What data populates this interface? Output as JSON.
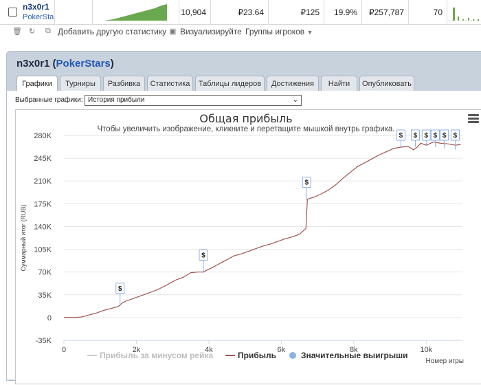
{
  "top_row": {
    "player_name": "n3x0r1",
    "player_site": "PokerStars",
    "hands": "10,904",
    "avg_buyin": "₽23.64",
    "max_buyin": "₽125",
    "roi": "19.9%",
    "profit": "₽257,787",
    "percentile": "70"
  },
  "toolbar": {
    "add_stats_label": "Добавить другую статистику",
    "visualize_label": "Визуализируйте",
    "groups_label": "Группы игроков"
  },
  "panel": {
    "player": "n3x0r1",
    "site": "PokerStars",
    "tabs": [
      "Графики",
      "Турниры",
      "Разбивка",
      "Статистика",
      "Таблицы лидеров",
      "Достижения",
      "Найти",
      "Опубликовать"
    ],
    "active_tab": 0,
    "chart_select_label": "Выбранные графики:",
    "chart_select_value": "История прибыли"
  },
  "chart_data": {
    "type": "line",
    "title": "Общая прибыль",
    "subtitle": "Чтобы увеличить изображение, кликните и перетащите мышкой внутрь графика.",
    "xlabel": "Номер игры",
    "ylabel": "Суммарный итог (RUB)",
    "xlim": [
      0,
      11000
    ],
    "ylim": [
      -35000,
      280000
    ],
    "x_ticks": [
      0,
      2000,
      4000,
      6000,
      8000,
      10000
    ],
    "x_tick_labels": [
      "0",
      "2k",
      "4k",
      "6k",
      "8k",
      "10k"
    ],
    "y_ticks": [
      -35000,
      0,
      35000,
      70000,
      105000,
      140000,
      175000,
      210000,
      245000,
      280000
    ],
    "y_tick_labels": [
      "-35K",
      "0",
      "35K",
      "70K",
      "105K",
      "140K",
      "175K",
      "210K",
      "245K",
      "280K"
    ],
    "legend": [
      "Прибыль за минусом рейка",
      "Прибыль",
      "Значительные выигрыши"
    ],
    "series": [
      {
        "name": "Прибыль",
        "color": "#a0524f",
        "x": [
          0,
          300,
          500,
          700,
          900,
          1100,
          1300,
          1500,
          1600,
          1700,
          1900,
          2100,
          2300,
          2500,
          2700,
          2900,
          3100,
          3300,
          3500,
          3700,
          3850,
          3950,
          4100,
          4300,
          4500,
          4700,
          4900,
          5100,
          5300,
          5500,
          5700,
          5900,
          6100,
          6300,
          6500,
          6680,
          6720,
          6900,
          7100,
          7300,
          7500,
          7700,
          7900,
          8100,
          8300,
          8500,
          8700,
          8900,
          9100,
          9300,
          9500,
          9650,
          9750,
          9850,
          10000,
          10200,
          10400,
          10600,
          10800,
          10950
        ],
        "y": [
          0,
          0,
          1000,
          4000,
          7000,
          11000,
          14000,
          17000,
          22000,
          25000,
          29000,
          33000,
          37000,
          41000,
          46000,
          52000,
          58000,
          62000,
          69000,
          70000,
          70000,
          73000,
          77000,
          83000,
          89000,
          95000,
          98000,
          102000,
          106000,
          110000,
          113000,
          117000,
          121000,
          124000,
          128000,
          137000,
          182000,
          185000,
          190000,
          196000,
          204000,
          214000,
          223000,
          232000,
          238000,
          244000,
          250000,
          255000,
          260000,
          262000,
          263000,
          258000,
          262000,
          268000,
          265000,
          270000,
          268000,
          267000,
          265000,
          266000
        ]
      }
    ],
    "significant_wins": [
      {
        "x": 1550,
        "y": 17000
      },
      {
        "x": 3850,
        "y": 68000
      },
      {
        "x": 6700,
        "y": 180000
      },
      {
        "x": 9300,
        "y": 262000
      },
      {
        "x": 9700,
        "y": 262000
      },
      {
        "x": 10000,
        "y": 264000
      },
      {
        "x": 10250,
        "y": 262000
      },
      {
        "x": 10500,
        "y": 260000
      },
      {
        "x": 10800,
        "y": 258000
      }
    ],
    "significant_win_label": "$",
    "legend_colors": {
      "rake": "#cccccc",
      "profit": "#a0524f",
      "wins": "#8cb2e8"
    }
  }
}
